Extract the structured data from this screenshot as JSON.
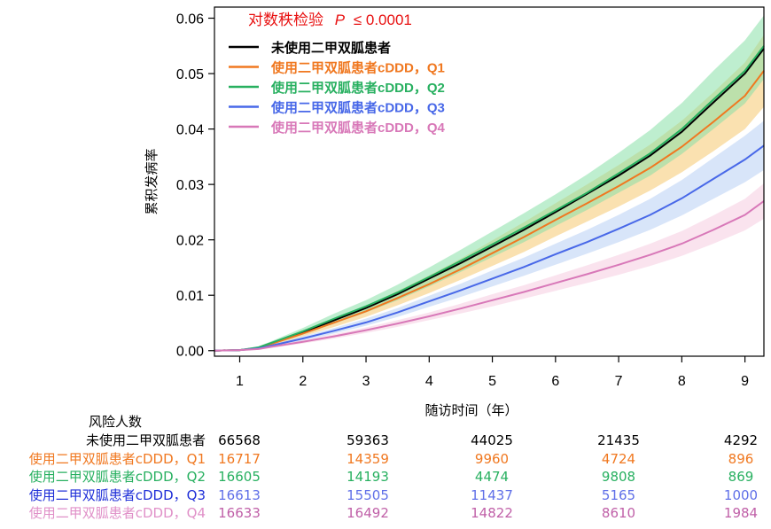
{
  "chart_data": {
    "type": "line",
    "ylabel": "累积发病率",
    "xlabel": "随访时间（年）",
    "xlim": [
      0.6,
      9.3
    ],
    "ylim": [
      -0.001,
      0.062
    ],
    "x_ticks": [
      "1",
      "2",
      "3",
      "4",
      "5",
      "6",
      "7",
      "8",
      "9"
    ],
    "y_ticks": [
      "0.00",
      "0.01",
      "0.02",
      "0.03",
      "0.04",
      "0.05",
      "0.06"
    ],
    "annotation": {
      "label": "对数秩检验",
      "p_symbol": "P",
      "p_value": "≤ 0.0001"
    },
    "x": [
      0.6,
      1.0,
      1.3,
      1.5,
      2.0,
      2.5,
      3.0,
      3.5,
      4.0,
      4.5,
      5.0,
      5.5,
      6.0,
      6.5,
      7.0,
      7.5,
      8.0,
      8.5,
      9.0,
      9.3
    ],
    "series": [
      {
        "name": "未使用二甲双胍患者",
        "color": "#000000",
        "values": [
          0,
          0.0001,
          0.0005,
          0.0013,
          0.0033,
          0.0055,
          0.0077,
          0.0102,
          0.013,
          0.0158,
          0.0188,
          0.0218,
          0.025,
          0.0283,
          0.0316,
          0.0352,
          0.0395,
          0.0448,
          0.05,
          0.0545
        ]
      },
      {
        "name": "使用二甲双胍患者cDDD，Q1",
        "color": "#f07820",
        "values": [
          0,
          0.0001,
          0.0005,
          0.0012,
          0.0031,
          0.0051,
          0.0071,
          0.0095,
          0.012,
          0.0147,
          0.0176,
          0.0205,
          0.0236,
          0.0266,
          0.0297,
          0.033,
          0.0368,
          0.0413,
          0.046,
          0.0505
        ],
        "band": {
          "lower": [
            0,
            0,
            0.0003,
            0.0009,
            0.0026,
            0.0043,
            0.0061,
            0.0082,
            0.0104,
            0.0128,
            0.0153,
            0.0178,
            0.0206,
            0.0233,
            0.026,
            0.0289,
            0.0322,
            0.036,
            0.04,
            0.044
          ],
          "upper": [
            0,
            0.0002,
            0.0007,
            0.0015,
            0.0037,
            0.0059,
            0.0081,
            0.0108,
            0.0136,
            0.0166,
            0.0199,
            0.0232,
            0.0266,
            0.03,
            0.0335,
            0.0372,
            0.0415,
            0.0466,
            0.052,
            0.057
          ],
          "color": "#f5c870"
        }
      },
      {
        "name": "使用二甲双胍患者cDDD，Q2",
        "color": "#28b060",
        "values": [
          0,
          0.0001,
          0.0006,
          0.0014,
          0.0035,
          0.0058,
          0.008,
          0.0105,
          0.0133,
          0.0162,
          0.0192,
          0.0222,
          0.0253,
          0.0285,
          0.032,
          0.0356,
          0.04,
          0.0453,
          0.0505,
          0.055
        ],
        "band": {
          "lower": [
            0,
            0,
            0.0004,
            0.0011,
            0.0029,
            0.0049,
            0.0069,
            0.0091,
            0.0116,
            0.0142,
            0.0169,
            0.0196,
            0.0225,
            0.0254,
            0.0285,
            0.0316,
            0.0355,
            0.04,
            0.0446,
            0.049
          ],
          "upper": [
            0,
            0.0002,
            0.0008,
            0.0017,
            0.0041,
            0.0067,
            0.0091,
            0.0119,
            0.015,
            0.0182,
            0.0215,
            0.0248,
            0.0282,
            0.0318,
            0.0357,
            0.0398,
            0.0447,
            0.0505,
            0.056,
            0.0605
          ],
          "color": "#88e0a8"
        }
      },
      {
        "name": "使用二甲双胍患者cDDD，Q3",
        "color": "#4868e8",
        "values": [
          0,
          0.0001,
          0.0004,
          0.0009,
          0.0022,
          0.0036,
          0.0051,
          0.0069,
          0.0089,
          0.0109,
          0.013,
          0.0151,
          0.0174,
          0.0196,
          0.022,
          0.0245,
          0.0275,
          0.031,
          0.0345,
          0.037
        ],
        "band": {
          "lower": [
            0,
            0,
            0.0003,
            0.0007,
            0.0018,
            0.0031,
            0.0045,
            0.0061,
            0.0079,
            0.0097,
            0.0116,
            0.0135,
            0.0155,
            0.0175,
            0.0196,
            0.0218,
            0.0244,
            0.0274,
            0.0304,
            0.0326
          ],
          "upper": [
            0,
            0.0002,
            0.0005,
            0.0011,
            0.0026,
            0.0041,
            0.0058,
            0.0077,
            0.0099,
            0.0121,
            0.0145,
            0.0168,
            0.0193,
            0.0218,
            0.0245,
            0.0274,
            0.0308,
            0.0348,
            0.0388,
            0.0415
          ],
          "color": "#b8d0f4"
        }
      },
      {
        "name": "使用二甲双胍患者cDDD，Q4",
        "color": "#d878b8",
        "values": [
          0,
          0.0001,
          0.0003,
          0.0007,
          0.0016,
          0.0026,
          0.0037,
          0.0049,
          0.0062,
          0.0076,
          0.0091,
          0.0106,
          0.0122,
          0.0138,
          0.0155,
          0.0173,
          0.0193,
          0.0218,
          0.0245,
          0.027
        ],
        "band": {
          "lower": [
            0,
            0,
            0.0002,
            0.0005,
            0.0013,
            0.0022,
            0.0032,
            0.0043,
            0.0055,
            0.0067,
            0.008,
            0.0094,
            0.0108,
            0.0122,
            0.0137,
            0.0153,
            0.0171,
            0.0193,
            0.0217,
            0.0238
          ],
          "upper": [
            0,
            0.0002,
            0.0004,
            0.0009,
            0.0019,
            0.003,
            0.0042,
            0.0055,
            0.0069,
            0.0085,
            0.0102,
            0.0118,
            0.0136,
            0.0154,
            0.0173,
            0.0193,
            0.0216,
            0.0244,
            0.0274,
            0.0302
          ],
          "color": "#f6cce0"
        }
      }
    ],
    "legend_position": "top-left"
  },
  "risk_table": {
    "title": "风险人数",
    "rows": [
      {
        "label": "未使用二甲双胍患者",
        "color": "#000000",
        "values": [
          "66568",
          "59363",
          "44025",
          "21435",
          "4292"
        ]
      },
      {
        "label": "使用二甲双胍患者cDDD，Q1",
        "color": "#f07820",
        "values": [
          "16717",
          "14359",
          "9960",
          "4724",
          "896"
        ]
      },
      {
        "label": "使用二甲双胍患者cDDD，Q2",
        "color": "#28b060",
        "values": [
          "16605",
          "14193",
          "4474",
          "9808",
          "869"
        ]
      },
      {
        "label": "使用二甲双胍患者cDDD，Q3",
        "color": "#2848e0",
        "label_color": "#2030d8",
        "num_color": "#6070e8",
        "values": [
          "16613",
          "15505",
          "11437",
          "5165",
          "1000"
        ]
      },
      {
        "label": "使用二甲双胍患者cDDD，Q4",
        "color": "#d070b0",
        "label_color": "#e090c8",
        "num_color": "#c060a8",
        "values": [
          "16633",
          "16492",
          "14822",
          "8610",
          "1984"
        ]
      }
    ]
  }
}
